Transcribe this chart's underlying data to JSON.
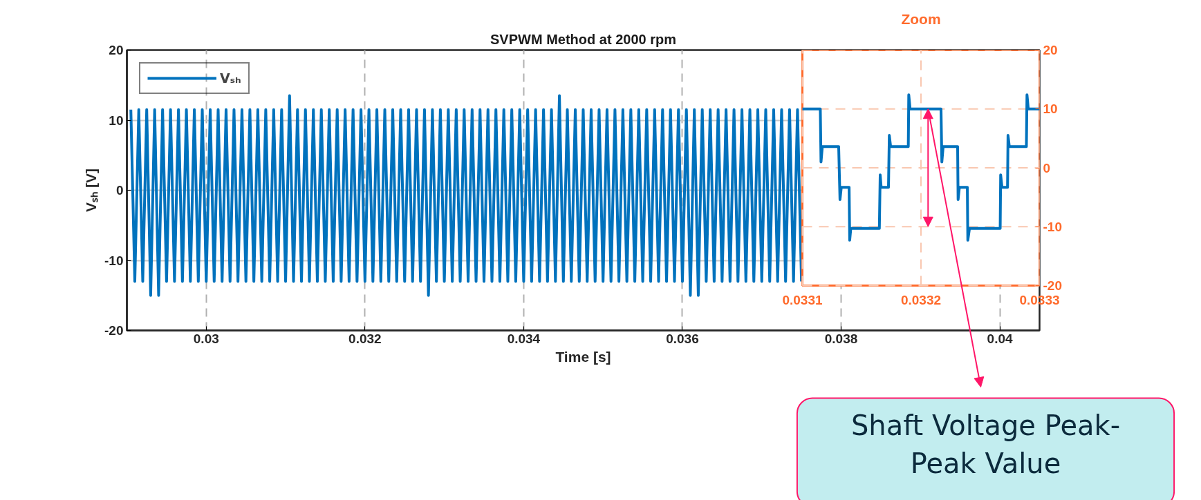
{
  "chart_data": [
    {
      "type": "line",
      "title": "SVPWM Method at 2000 rpm",
      "xlabel": "Time [s]",
      "ylabel": "Vₛₕ [V]",
      "x": [
        0.02905,
        0.0291,
        0.02915,
        0.0292,
        0.02925,
        0.0293,
        0.02935,
        0.0294,
        0.02945,
        0.0295,
        0.02955,
        0.0296,
        0.02965,
        0.0297,
        0.02975,
        0.0298,
        0.02985,
        0.0299,
        0.02995,
        0.03,
        0.03005,
        0.0301,
        0.03015,
        0.0302,
        0.03025,
        0.0303,
        0.03035,
        0.0304,
        0.03045,
        0.0305,
        0.03055,
        0.0306,
        0.03065,
        0.0307,
        0.03075,
        0.0308,
        0.03085,
        0.0309,
        0.03095,
        0.031,
        0.03105,
        0.0311,
        0.03115,
        0.0312,
        0.03125,
        0.0313,
        0.03135,
        0.0314,
        0.03145,
        0.0315,
        0.03155,
        0.0316,
        0.03165,
        0.0317,
        0.03175,
        0.0318,
        0.03185,
        0.0319,
        0.03195,
        0.032,
        0.03205,
        0.0321,
        0.03215,
        0.0322,
        0.03225,
        0.0323,
        0.03235,
        0.0324,
        0.03245,
        0.0325,
        0.03255,
        0.0326,
        0.03265,
        0.0327,
        0.03275,
        0.0328,
        0.03285,
        0.0329,
        0.03295,
        0.033,
        0.03305,
        0.0331,
        0.03315,
        0.0332,
        0.03325,
        0.0333,
        0.03335,
        0.0334,
        0.03345,
        0.0335,
        0.03355,
        0.0336,
        0.03365,
        0.0337,
        0.03375,
        0.0338,
        0.03385,
        0.0339,
        0.03395,
        0.034,
        0.03405,
        0.0341,
        0.03415,
        0.0342,
        0.03425,
        0.0343,
        0.03435,
        0.0344,
        0.03445,
        0.0345,
        0.03455,
        0.0346,
        0.03465,
        0.0347,
        0.03475,
        0.0348,
        0.03485,
        0.0349,
        0.03495,
        0.035,
        0.03505,
        0.0351,
        0.03515,
        0.0352,
        0.03525,
        0.0353,
        0.03535,
        0.0354,
        0.03545,
        0.0355,
        0.03555,
        0.0356,
        0.03565,
        0.0357,
        0.03575,
        0.0358,
        0.03585,
        0.0359,
        0.03595,
        0.036,
        0.03605,
        0.0361,
        0.03615,
        0.0362,
        0.03625,
        0.0363,
        0.03635,
        0.0364,
        0.03645,
        0.0365,
        0.03655,
        0.0366,
        0.03665,
        0.0367,
        0.03675,
        0.0368,
        0.03685,
        0.0369,
        0.03695,
        0.037,
        0.03705,
        0.0371,
        0.03715,
        0.0372,
        0.03725,
        0.0373,
        0.03735,
        0.0374,
        0.03745,
        0.0375
      ],
      "series": [
        {
          "name": "Vₛₕ",
          "color": "#0072bd",
          "values": [
            11.5,
            -13,
            11.5,
            -13,
            11.5,
            -15,
            11.5,
            -15,
            11.5,
            -13,
            11.5,
            -13,
            11.5,
            -13,
            11.5,
            -13,
            11.5,
            -13,
            11.5,
            -13,
            11.5,
            -13,
            11.5,
            -13,
            11.5,
            -13,
            11.5,
            -13,
            11.5,
            -13,
            11.5,
            -13,
            11.5,
            -13,
            11.5,
            -13,
            11.5,
            -13,
            11.5,
            -13,
            13.5,
            -13,
            11.5,
            -13,
            11.5,
            -13,
            11.5,
            -13,
            11.5,
            -13,
            11.5,
            -13,
            11.5,
            -13,
            11.5,
            -13,
            11.5,
            -13,
            11.5,
            -13,
            11.5,
            -13,
            11.5,
            -13,
            11.5,
            -13,
            11.5,
            -13,
            11.5,
            -13,
            11.5,
            -13,
            11.5,
            -13,
            11.5,
            -15,
            11.5,
            -13,
            11.5,
            -13,
            11.5,
            -13,
            11.5,
            -13,
            11.5,
            -13,
            11.5,
            -13,
            11.5,
            -13,
            11.5,
            -13,
            11.5,
            -13,
            11.5,
            -13,
            11.5,
            -13,
            11.5,
            -13,
            11.5,
            -13,
            11.5,
            -13,
            11.5,
            -13,
            11.5,
            -13,
            13.5,
            -13,
            11.5,
            -13,
            11.5,
            -13,
            11.5,
            -13,
            11.5,
            -13,
            11.5,
            -13,
            11.5,
            -13,
            11.5,
            -13,
            11.5,
            -13,
            11.5,
            -13,
            11.5,
            -13,
            11.5,
            -13,
            11.5,
            -13,
            11.5,
            -13,
            11.5,
            -13,
            11.5,
            -13,
            11.5,
            -15,
            11.5,
            -15,
            11.5,
            -13,
            11.5,
            -13,
            11.5,
            -13,
            11.5,
            -13,
            11.5,
            -13,
            11.5,
            -13,
            11.5,
            -13,
            11.5,
            -13,
            11.5,
            -13,
            11.5,
            -13,
            11.5,
            -13,
            11.5,
            -13,
            11.5,
            -13
          ]
        }
      ],
      "xlim": [
        0.029,
        0.0405
      ],
      "ylim": [
        -20,
        20
      ],
      "xticks": [
        0.03,
        0.032,
        0.034,
        0.036,
        0.038,
        0.04
      ],
      "yticks": [
        -20,
        -10,
        0,
        10,
        20
      ],
      "grid": true,
      "legend": "top left"
    },
    {
      "type": "line",
      "title": "Zoom",
      "x": [
        0.0331,
        0.0331151,
        0.0331157,
        0.0331168,
        0.0331306,
        0.0331317,
        0.0331328,
        0.0331394,
        0.0331399,
        0.0331408,
        0.0331649,
        0.0331656,
        0.0331664,
        0.0331726,
        0.0331733,
        0.0331744,
        0.0331893,
        0.0331897,
        0.0331908,
        0.0332169,
        0.0332176,
        0.0332187,
        0.0332309,
        0.0332313,
        0.0332324,
        0.0332391,
        0.0332395,
        0.0332409,
        0.0332668,
        0.0332672,
        0.0332683,
        0.033273,
        0.0332734,
        0.0332745,
        0.0332889,
        0.0332894,
        0.0332905,
        0.0333
      ],
      "series": [
        {
          "color": "#0072bd",
          "values": [
            10,
            10,
            1,
            3.6,
            3.6,
            -5.4,
            -3.3,
            -3.3,
            -12.3,
            -10.3,
            -10.3,
            -1.2,
            -3.3,
            -3.3,
            5.5,
            3.6,
            3.6,
            12.4,
            10,
            10,
            1,
            3.6,
            3.6,
            -5.4,
            -3.3,
            -3.3,
            -12.3,
            -10.3,
            -10.3,
            -1.2,
            -3.3,
            -3.3,
            5.5,
            3.6,
            3.6,
            12.4,
            10,
            10
          ]
        }
      ],
      "xlim": [
        0.0331,
        0.0333
      ],
      "ylim": [
        -20,
        20
      ],
      "xticks": [
        0.0331,
        0.0332,
        0.0333
      ],
      "yticks": [
        -20,
        -10,
        0,
        10,
        20
      ],
      "grid": true,
      "annotations": [
        {
          "text": "Shaft Voltage Peak-Peak Value",
          "x": 0.033206,
          "y": 10
        }
      ]
    }
  ]
}
